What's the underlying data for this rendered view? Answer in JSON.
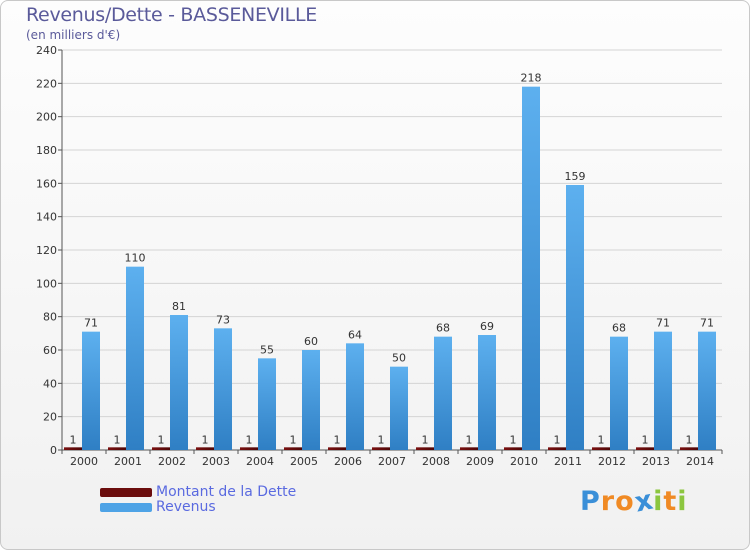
{
  "header": {
    "title": "Revenus/Dette - BASSENEVILLE",
    "subtitle": "(en milliers d'€)"
  },
  "chart_data": {
    "type": "bar",
    "title": "Revenus/Dette - BASSENEVILLE",
    "ylabel": "(en milliers d'€)",
    "xlabel": "",
    "ylim": [
      0,
      240
    ],
    "yticks": [
      0,
      20,
      40,
      60,
      80,
      100,
      120,
      140,
      160,
      180,
      200,
      220,
      240
    ],
    "grid": true,
    "categories": [
      "2000",
      "2001",
      "2002",
      "2003",
      "2004",
      "2005",
      "2006",
      "2007",
      "2008",
      "2009",
      "2010",
      "2011",
      "2012",
      "2013",
      "2014"
    ],
    "series": [
      {
        "name": "Montant de la Dette",
        "color": "#6b0d0d",
        "values": [
          1,
          1,
          1,
          1,
          1,
          1,
          1,
          1,
          1,
          1,
          1,
          1,
          1,
          1,
          1
        ]
      },
      {
        "name": "Revenus",
        "color": "#4ea3e6",
        "values": [
          71,
          110,
          81,
          73,
          55,
          60,
          64,
          50,
          68,
          69,
          218,
          159,
          68,
          71,
          71
        ]
      }
    ],
    "legend": "bottom-left"
  },
  "legend": {
    "items": [
      {
        "label": "Montant de la Dette",
        "color": "#6b0d0d"
      },
      {
        "label": "Revenus",
        "color": "#4ea3e6"
      }
    ]
  },
  "brand": {
    "letters": [
      {
        "ch": "P",
        "color": "#3a8fd8"
      },
      {
        "ch": "r",
        "color": "#f08a24"
      },
      {
        "ch": "o",
        "color": "#f08a24"
      },
      {
        "ch": "x",
        "color": "#3a8fd8"
      },
      {
        "ch": "i",
        "color": "#8cc63f"
      },
      {
        "ch": "t",
        "color": "#f08a24"
      },
      {
        "ch": "i",
        "color": "#8cc63f"
      }
    ]
  }
}
